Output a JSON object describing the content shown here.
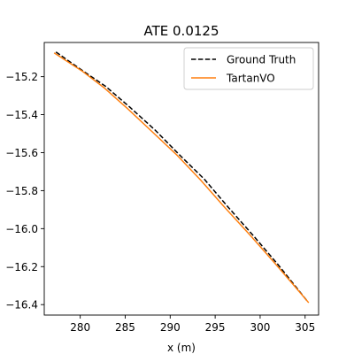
{
  "chart_data": {
    "type": "line",
    "title": "ATE 0.0125",
    "xlabel": "x (m)",
    "ylabel": "",
    "xlim": [
      276,
      306.5
    ],
    "ylim": [
      -16.455,
      -15.02
    ],
    "x_ticks": [
      280,
      285,
      290,
      295,
      300,
      305
    ],
    "y_ticks": [
      -15.2,
      -15.4,
      -15.6,
      -15.8,
      -16.0,
      -16.2,
      -16.4
    ],
    "grid": false,
    "legend_position": "top-right",
    "series": [
      {
        "name": "Ground Truth",
        "color": "#000000",
        "style": "dashed",
        "points": [
          [
            277.3,
            -15.07
          ],
          [
            280.0,
            -15.16
          ],
          [
            282.8,
            -15.25
          ],
          [
            285.5,
            -15.36
          ],
          [
            288.3,
            -15.48
          ],
          [
            291.0,
            -15.61
          ],
          [
            293.8,
            -15.74
          ],
          [
            296.5,
            -15.89
          ],
          [
            299.3,
            -16.04
          ],
          [
            302.0,
            -16.19
          ],
          [
            305.3,
            -16.385
          ]
        ]
      },
      {
        "name": "TartanVO",
        "color": "#ff7f0e",
        "style": "solid",
        "points": [
          [
            277.1,
            -15.075
          ],
          [
            280.2,
            -15.17
          ],
          [
            282.7,
            -15.26
          ],
          [
            285.3,
            -15.37
          ],
          [
            288.0,
            -15.49
          ],
          [
            290.8,
            -15.615
          ],
          [
            293.4,
            -15.745
          ],
          [
            296.0,
            -15.885
          ],
          [
            298.9,
            -16.035
          ],
          [
            301.6,
            -16.18
          ],
          [
            303.6,
            -16.29
          ],
          [
            305.4,
            -16.39
          ]
        ]
      }
    ]
  }
}
